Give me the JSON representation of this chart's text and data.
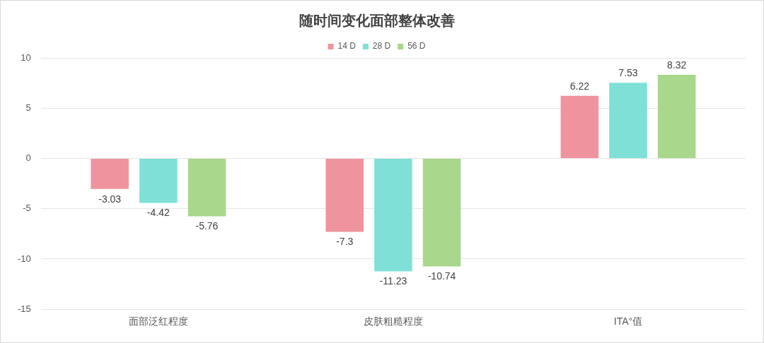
{
  "chart_data": {
    "type": "bar",
    "title": "随时间变化面部整体改善",
    "categories": [
      "面部泛红程度",
      "皮肤粗糙程度",
      "ITA°值"
    ],
    "series": [
      {
        "name": "14 D",
        "color": "#ef949e",
        "values": [
          -3.03,
          -7.3,
          6.22
        ]
      },
      {
        "name": "28 D",
        "color": "#7fe0d7",
        "values": [
          -4.42,
          -11.23,
          7.53
        ]
      },
      {
        "name": "56 D",
        "color": "#a9d78c",
        "values": [
          -5.76,
          -10.74,
          8.32
        ]
      }
    ],
    "ylim": [
      -15,
      10
    ],
    "yticks": [
      -15,
      -10,
      -5,
      0,
      5,
      10
    ],
    "grid": "y",
    "legend": "top",
    "data_labels": true
  }
}
